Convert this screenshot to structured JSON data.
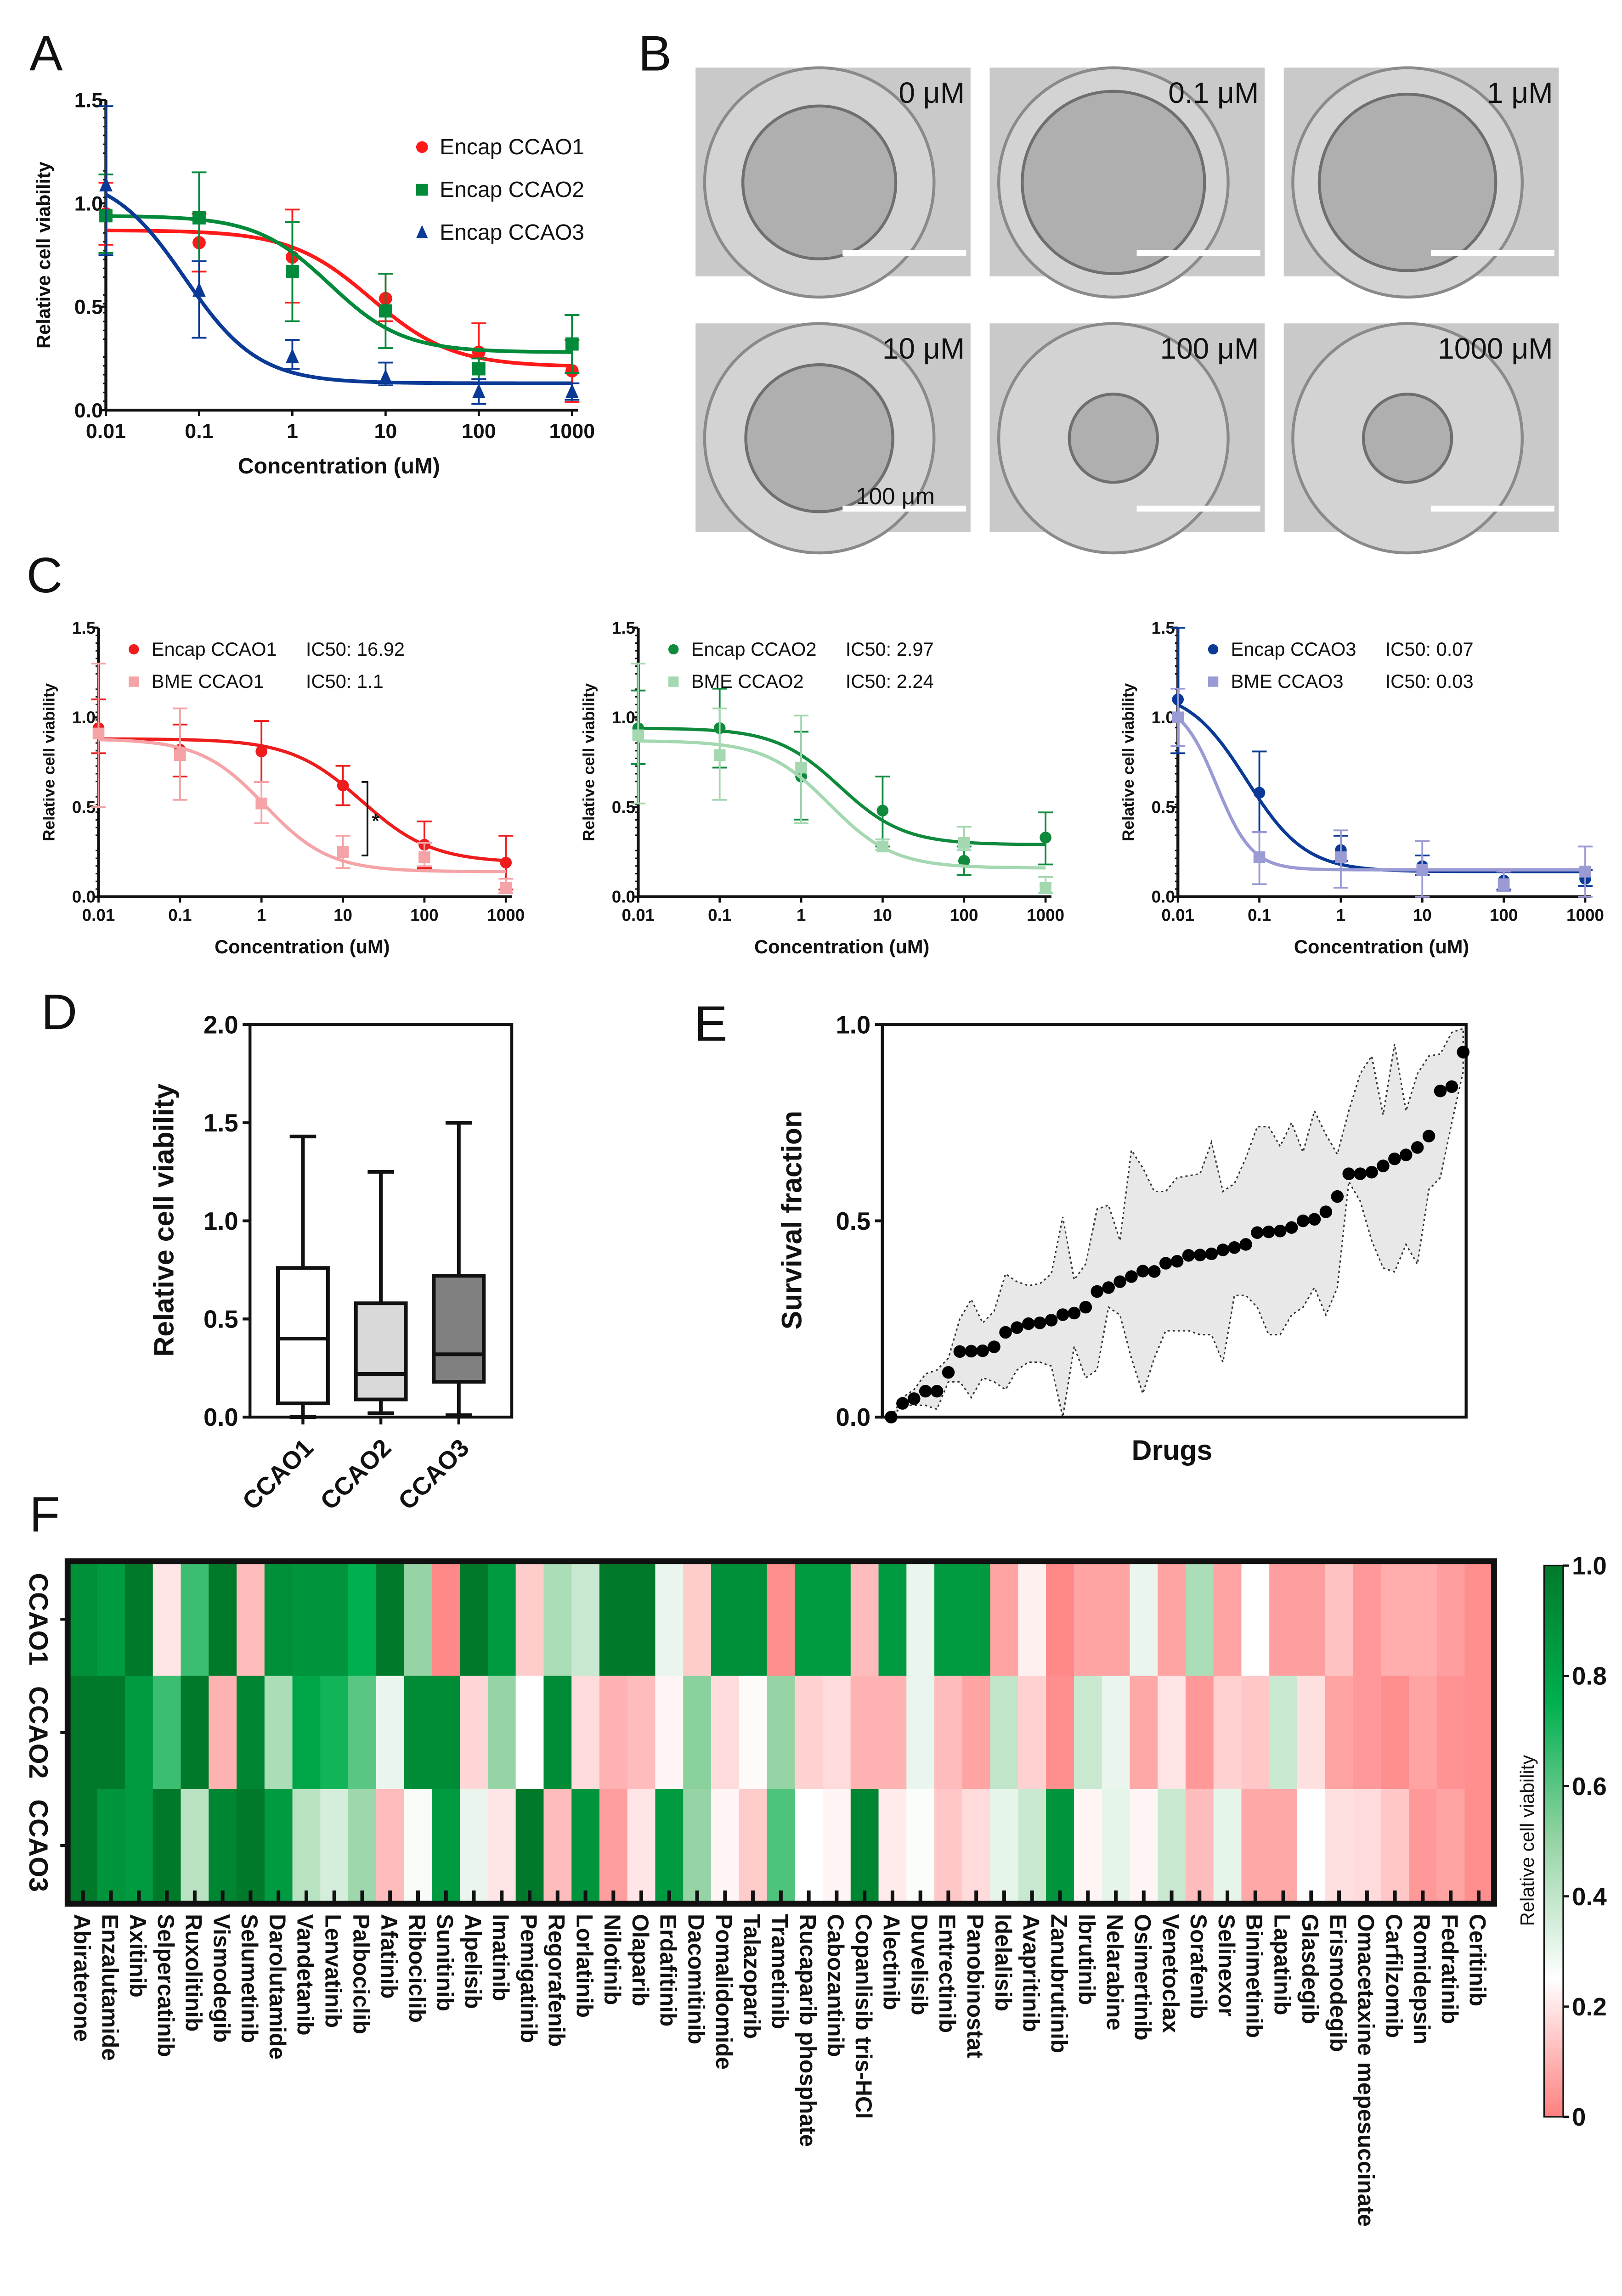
{
  "panel_labels": [
    "A",
    "B",
    "C",
    "D",
    "E",
    "F"
  ],
  "panel_b": {
    "labels": [
      "0 μM",
      "0.1 μM",
      "1 μM",
      "10 μM",
      "100 μM",
      "1000 μM"
    ],
    "scale_bar": "100 μm"
  },
  "chart_data": {
    "A": {
      "type": "line",
      "xscale": "log",
      "x": [
        0.01,
        0.1,
        1,
        10,
        100,
        1000
      ],
      "xticks": [
        "0.01",
        "0.1",
        "1",
        "10",
        "100",
        "1000"
      ],
      "yticks": [
        "0.0",
        "0.5",
        "1.0",
        "1.5"
      ],
      "ylim": [
        0,
        1.5
      ],
      "xlabel": "Concentration (uM)",
      "ylabel": "Relative cell viability",
      "series": [
        {
          "name": "Encap CCAO1",
          "color": "#ff1a1a",
          "marker": "circle",
          "values": [
            0.95,
            0.81,
            0.74,
            0.54,
            0.28,
            0.19
          ],
          "err": [
            [
              0.8,
              1.1
            ],
            [
              0.67,
              0.95
            ],
            [
              0.52,
              0.97
            ],
            [
              0.43,
              0.66
            ],
            [
              0.15,
              0.42
            ],
            [
              0.04,
              0.34
            ]
          ],
          "fit": {
            "top": 0.87,
            "bottom": 0.21,
            "ic50": 7,
            "hill": 1.0
          }
        },
        {
          "name": "Encap CCAO2",
          "color": "#008a3a",
          "marker": "square",
          "values": [
            0.94,
            0.93,
            0.67,
            0.48,
            0.2,
            0.32
          ],
          "err": [
            [
              0.76,
              1.14
            ],
            [
              0.72,
              1.15
            ],
            [
              0.43,
              0.91
            ],
            [
              0.3,
              0.66
            ],
            [
              0.15,
              0.25
            ],
            [
              0.18,
              0.46
            ]
          ],
          "fit": {
            "top": 0.94,
            "bottom": 0.28,
            "ic50": 2.5,
            "hill": 1.1
          }
        },
        {
          "name": "Encap CCAO3",
          "color": "#0a3a96",
          "marker": "triangle",
          "values": [
            1.09,
            0.58,
            0.26,
            0.16,
            0.09,
            0.09
          ],
          "err": [
            [
              0.75,
              1.47
            ],
            [
              0.35,
              0.72
            ],
            [
              0.2,
              0.34
            ],
            [
              0.12,
              0.23
            ],
            [
              0.03,
              0.15
            ],
            [
              0.05,
              0.13
            ]
          ],
          "fit": {
            "top": 1.15,
            "bottom": 0.13,
            "ic50": 0.07,
            "hill": 1.1
          }
        }
      ]
    },
    "C": [
      {
        "type": "line",
        "xscale": "log",
        "x": [
          0.01,
          0.1,
          1,
          10,
          100,
          1000
        ],
        "xticks": [
          "0.01",
          "0.1",
          "1",
          "10",
          "100",
          "1000"
        ],
        "yticks": [
          "0.0",
          "0.5",
          "1.0",
          "1.5"
        ],
        "ylim": [
          0,
          1.5
        ],
        "xlabel": "Concentration (uM)",
        "ylabel": "Relative cell viability",
        "significance": "*",
        "series": [
          {
            "name": "Encap CCAO1",
            "ic50_label": "IC50: 16.92",
            "color": "#ee1c1c",
            "marker": "circle",
            "values": [
              0.94,
              0.82,
              0.81,
              0.62,
              0.29,
              0.19
            ],
            "err": [
              [
                0.8,
                1.1
              ],
              [
                0.67,
                0.96
              ],
              [
                0.64,
                0.98
              ],
              [
                0.51,
                0.73
              ],
              [
                0.16,
                0.42
              ],
              [
                0.04,
                0.34
              ]
            ],
            "fit": {
              "top": 0.88,
              "bottom": 0.19,
              "ic50": 16.92,
              "hill": 1.0
            }
          },
          {
            "name": "BME CCAO1",
            "ic50_label": "IC50: 1.1",
            "color": "#f5a3a6",
            "marker": "square",
            "values": [
              0.91,
              0.79,
              0.52,
              0.25,
              0.22,
              0.05
            ],
            "err": [
              [
                0.5,
                1.3
              ],
              [
                0.54,
                1.05
              ],
              [
                0.41,
                0.64
              ],
              [
                0.16,
                0.34
              ],
              [
                0.17,
                0.3
              ],
              [
                0.02,
                0.1
              ]
            ],
            "fit": {
              "top": 0.88,
              "bottom": 0.14,
              "ic50": 1.1,
              "hill": 1.1
            }
          }
        ]
      },
      {
        "type": "line",
        "xscale": "log",
        "x": [
          0.01,
          0.1,
          1,
          10,
          100,
          1000
        ],
        "xticks": [
          "0.01",
          "0.1",
          "1",
          "10",
          "100",
          "1000"
        ],
        "yticks": [
          "0.0",
          "0.5",
          "1.0",
          "1.5"
        ],
        "ylim": [
          0,
          1.5
        ],
        "xlabel": "Concentration (uM)",
        "ylabel": "Relative cell viability",
        "series": [
          {
            "name": "Encap CCAO2",
            "ic50_label": "IC50: 2.97",
            "color": "#0f8a3c",
            "marker": "circle",
            "values": [
              0.94,
              0.94,
              0.67,
              0.48,
              0.2,
              0.33
            ],
            "err": [
              [
                0.74,
                1.15
              ],
              [
                0.72,
                1.16
              ],
              [
                0.43,
                0.92
              ],
              [
                0.28,
                0.67
              ],
              [
                0.12,
                0.28
              ],
              [
                0.18,
                0.47
              ]
            ],
            "fit": {
              "top": 0.94,
              "bottom": 0.29,
              "ic50": 2.97,
              "hill": 1.1
            }
          },
          {
            "name": "BME  CCAO2",
            "ic50_label": "IC50: 2.24",
            "color": "#a3d8b0",
            "marker": "square",
            "values": [
              0.9,
              0.79,
              0.72,
              0.28,
              0.3,
              0.05
            ],
            "err": [
              [
                0.52,
                1.3
              ],
              [
                0.54,
                1.05
              ],
              [
                0.41,
                1.01
              ],
              [
                0.26,
                0.32
              ],
              [
                0.26,
                0.39
              ],
              [
                0.02,
                0.11
              ]
            ],
            "fit": {
              "top": 0.87,
              "bottom": 0.16,
              "ic50": 2.24,
              "hill": 1.1
            }
          }
        ]
      },
      {
        "type": "line",
        "xscale": "log",
        "x": [
          0.01,
          0.1,
          1,
          10,
          100,
          1000
        ],
        "xticks": [
          "0.01",
          "0.1",
          "1",
          "10",
          "100",
          "1000"
        ],
        "yticks": [
          "0.0",
          "0.5",
          "1.0",
          "1.5"
        ],
        "ylim": [
          0,
          1.5
        ],
        "xlabel": "Concentration (uM)",
        "ylabel": "Relative cell viability",
        "series": [
          {
            "name": "Encap CCAO3",
            "ic50_label": "IC50: 0.07",
            "color": "#0a3a96",
            "marker": "circle",
            "values": [
              1.1,
              0.58,
              0.26,
              0.17,
              0.09,
              0.1
            ],
            "err": [
              [
                0.8,
                1.5
              ],
              [
                0.36,
                0.81
              ],
              [
                0.2,
                0.34
              ],
              [
                0.12,
                0.23
              ],
              [
                0.04,
                0.14
              ],
              [
                0.06,
                0.15
              ]
            ],
            "fit": {
              "top": 1.16,
              "bottom": 0.14,
              "ic50": 0.07,
              "hill": 1.2
            }
          },
          {
            "name": "BME CCAO3",
            "ic50_label": "IC50: 0.03",
            "color": "#9a9ad4",
            "marker": "square",
            "values": [
              1.0,
              0.22,
              0.22,
              0.15,
              0.07,
              0.14
            ],
            "err": [
              [
                0.84,
                1.16
              ],
              [
                0.07,
                0.36
              ],
              [
                0.05,
                0.37
              ],
              [
                0.0,
                0.31
              ],
              [
                0.03,
                0.14
              ],
              [
                0.0,
                0.28
              ]
            ],
            "fit": {
              "top": 1.09,
              "bottom": 0.15,
              "ic50": 0.03,
              "hill": 2.0
            }
          }
        ]
      }
    ],
    "D": {
      "type": "box",
      "categories": [
        "CCAO1",
        "CCAO2",
        "CCAO3"
      ],
      "ylabel": "Relative cell viability",
      "yticks": [
        "0.0",
        "0.5",
        "1.0",
        "1.5",
        "2.0"
      ],
      "ylim": [
        0,
        2.0
      ],
      "boxes": [
        {
          "min": 0.0,
          "q1": 0.07,
          "median": 0.4,
          "q3": 0.76,
          "max": 1.43,
          "fill": "#ffffff"
        },
        {
          "min": 0.02,
          "q1": 0.09,
          "median": 0.22,
          "q3": 0.58,
          "max": 1.25,
          "fill": "#d9d9d9"
        },
        {
          "min": 0.01,
          "q1": 0.18,
          "median": 0.32,
          "q3": 0.72,
          "max": 1.5,
          "fill": "#808080"
        }
      ]
    },
    "E": {
      "type": "scatter",
      "xlabel": "Drugs",
      "ylabel": "Survival fraction",
      "yticks": [
        "0.0",
        "0.5",
        "1.0"
      ],
      "ylim": [
        0,
        1.0
      ],
      "values": [
        0.0,
        0.035,
        0.047,
        0.066,
        0.066,
        0.114,
        0.167,
        0.168,
        0.169,
        0.179,
        0.216,
        0.228,
        0.238,
        0.24,
        0.247,
        0.261,
        0.265,
        0.28,
        0.32,
        0.33,
        0.345,
        0.358,
        0.372,
        0.371,
        0.392,
        0.397,
        0.412,
        0.413,
        0.416,
        0.426,
        0.432,
        0.44,
        0.47,
        0.472,
        0.474,
        0.483,
        0.5,
        0.504,
        0.523,
        0.562,
        0.62,
        0.62,
        0.624,
        0.64,
        0.658,
        0.668,
        0.687,
        0.716,
        0.831,
        0.842,
        0.93
      ],
      "upper": [
        0.0,
        0.05,
        0.07,
        0.11,
        0.12,
        0.15,
        0.25,
        0.3,
        0.24,
        0.27,
        0.365,
        0.345,
        0.335,
        0.34,
        0.365,
        0.51,
        0.35,
        0.39,
        0.53,
        0.54,
        0.45,
        0.68,
        0.635,
        0.575,
        0.575,
        0.61,
        0.615,
        0.62,
        0.7,
        0.575,
        0.595,
        0.66,
        0.74,
        0.74,
        0.69,
        0.75,
        0.675,
        0.78,
        0.72,
        0.67,
        0.78,
        0.875,
        0.92,
        0.77,
        0.95,
        0.78,
        0.875,
        0.92,
        0.925,
        0.98,
        0.99
      ],
      "lower": [
        0.0,
        0.03,
        0.03,
        0.03,
        0.02,
        0.09,
        0.09,
        0.05,
        0.1,
        0.09,
        0.07,
        0.12,
        0.14,
        0.14,
        0.13,
        0.0,
        0.18,
        0.1,
        0.12,
        0.28,
        0.26,
        0.15,
        0.06,
        0.15,
        0.22,
        0.22,
        0.22,
        0.21,
        0.21,
        0.14,
        0.31,
        0.31,
        0.28,
        0.21,
        0.21,
        0.26,
        0.28,
        0.33,
        0.26,
        0.33,
        0.6,
        0.55,
        0.45,
        0.38,
        0.37,
        0.44,
        0.39,
        0.58,
        0.61,
        0.75,
        0.88
      ]
    },
    "F": {
      "type": "heatmap",
      "rows": [
        "CCAO1",
        "CCAO2",
        "CCAO3"
      ],
      "columns": [
        "Abiraterone",
        "Enzalutamide",
        "Axitinib",
        "Selpercatinib",
        "Ruxolitinib",
        "Vismodegib",
        "Selumetinib",
        "Darolutamide",
        "Vandetanib",
        "Lenvatinib",
        "Palbociclib",
        "Afatinib",
        "Ribociclib",
        "Sunitinib",
        "Alpelisib",
        "Imatinib",
        "Pemigatinib",
        "Regorafenib",
        "Lorlatinib",
        "Nilotinib",
        "Olaparib",
        "Erdafitinib",
        "Dacomitinib",
        "Pomalidomide",
        "Talazoparib",
        "Trametinib",
        "Rucaparib phosphate",
        "Cabozantinib",
        "Copanlisib tris-HCl",
        "Alectinib",
        "Duvelisib",
        "Entrectinib",
        "Panobinostat",
        "Idelalisib",
        "Avapritinib",
        "Zanubrutinib",
        "Ibrutinib",
        "Nelarabine",
        "Osimertinib",
        "Venetoclax",
        "Sorafenib",
        "Selinexor",
        "Binimetinib",
        "Lapatinib",
        "Glasdegib",
        "Erismodegib",
        "Omacetaxine mepesuccinate",
        "Carfilzomib",
        "Romidepsin",
        "Fedratinib",
        "Ceritinib"
      ],
      "values": [
        [
          0.9,
          0.85,
          1.0,
          0.2,
          0.65,
          1.0,
          0.12,
          0.9,
          0.88,
          0.88,
          0.75,
          1.0,
          0.5,
          0.02,
          1.0,
          0.85,
          0.15,
          0.45,
          0.38,
          1.0,
          1.0,
          0.3,
          0.15,
          0.9,
          0.9,
          0.03,
          0.85,
          0.85,
          0.12,
          0.85,
          0.3,
          0.85,
          0.85,
          0.07,
          0.22,
          0.02,
          0.07,
          0.07,
          0.3,
          0.07,
          0.45,
          0.07,
          0.25,
          0.06,
          0.06,
          0.13,
          0.05,
          0.09,
          0.09,
          0.06,
          0.03
        ],
        [
          1.0,
          1.0,
          0.85,
          0.65,
          1.0,
          0.1,
          0.95,
          0.45,
          0.8,
          0.72,
          0.6,
          0.3,
          0.92,
          0.92,
          0.17,
          0.5,
          0.25,
          0.92,
          0.18,
          0.1,
          0.12,
          0.23,
          0.52,
          0.18,
          0.24,
          0.5,
          0.16,
          0.18,
          0.1,
          0.1,
          0.3,
          0.12,
          0.07,
          0.4,
          0.16,
          0.03,
          0.38,
          0.3,
          0.08,
          0.2,
          0.05,
          0.16,
          0.14,
          0.38,
          0.19,
          0.07,
          0.05,
          0.03,
          0.07,
          0.04,
          0.03
        ],
        [
          1.0,
          0.88,
          0.85,
          1.0,
          0.42,
          0.95,
          1.0,
          0.85,
          0.42,
          0.35,
          0.48,
          0.12,
          0.27,
          0.85,
          0.3,
          0.2,
          1.0,
          0.12,
          0.88,
          0.06,
          0.2,
          0.85,
          0.5,
          0.23,
          0.15,
          0.62,
          0.25,
          0.23,
          0.95,
          0.21,
          0.26,
          0.14,
          0.18,
          0.31,
          0.38,
          0.88,
          0.23,
          0.31,
          0.23,
          0.38,
          0.12,
          0.31,
          0.08,
          0.08,
          0.25,
          0.19,
          0.18,
          0.14,
          0.05,
          0.07,
          0.03
        ]
      ],
      "colorbar": {
        "label": "Relative cell viability",
        "ticks": [
          "1.0",
          "0.8",
          "0.6",
          "0.4",
          "0.2",
          "0"
        ],
        "tick_values": [
          1.0,
          0.8,
          0.6,
          0.4,
          0.2,
          0
        ],
        "range": [
          0,
          1.0
        ],
        "low_color": "#ff7f7f",
        "mid_color": "#ffffff",
        "high_color": "#007a2a"
      }
    }
  }
}
